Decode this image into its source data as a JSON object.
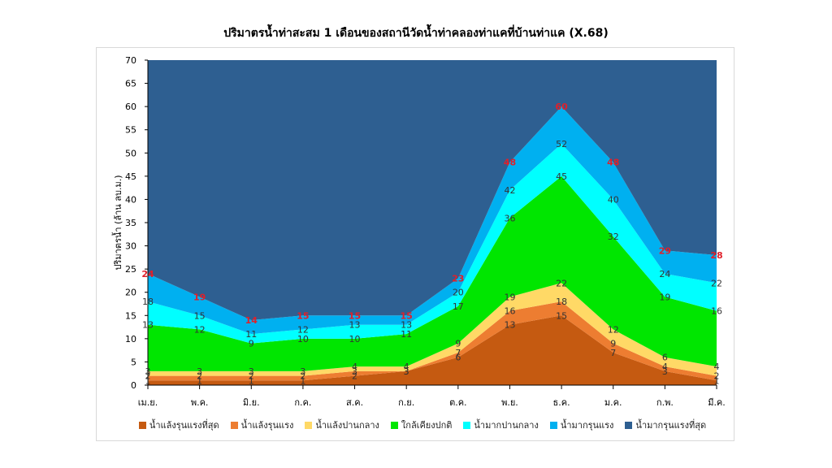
{
  "chart_data": {
    "type": "area",
    "title": "ปริมาตรน้ำท่าสะสม 1 เดือนของสถานีวัดน้ำท่าคลองท่าแคที่บ้านท่าแค (X.68)",
    "ylabel": "ปริมาตรน้ำ (ล้าน ลบ.ม.)",
    "xlabel": "",
    "ylim": [
      0,
      70
    ],
    "yticks": [
      0,
      5,
      10,
      15,
      20,
      25,
      30,
      35,
      40,
      45,
      50,
      55,
      60,
      65,
      70
    ],
    "categories": [
      "เม.ย.",
      "พ.ค.",
      "มิ.ย.",
      "ก.ค.",
      "ส.ค.",
      "ก.ย.",
      "ต.ค.",
      "พ.ย.",
      "ธ.ค.",
      "ม.ค.",
      "ก.พ.",
      "มี.ค."
    ],
    "legend_position": "bottom",
    "series": [
      {
        "name": "น้ำแล้งรุนแรงที่สุด",
        "color": "#c55a11",
        "values": [
          1,
          1,
          1,
          1,
          2,
          3,
          6,
          13,
          15,
          7,
          3,
          1
        ]
      },
      {
        "name": "น้ำแล้งรุนแรง",
        "color": "#ed7d31",
        "values": [
          2,
          2,
          2,
          2,
          3,
          3,
          7,
          16,
          18,
          9,
          4,
          2
        ]
      },
      {
        "name": "น้ำแล้งปานกลาง",
        "color": "#ffd966",
        "values": [
          3,
          3,
          3,
          3,
          4,
          4,
          9,
          19,
          22,
          12,
          6,
          4
        ]
      },
      {
        "name": "ใกล้เคียงปกติ",
        "color": "#00e600",
        "values": [
          13,
          12,
          9,
          10,
          10,
          11,
          17,
          36,
          45,
          32,
          19,
          16
        ]
      },
      {
        "name": "น้ำมากปานกลาง",
        "color": "#00ffff",
        "values": [
          18,
          15,
          11,
          12,
          13,
          13,
          20,
          42,
          52,
          40,
          24,
          22
        ]
      },
      {
        "name": "น้ำมากรุนแรง",
        "color": "#00b0f0",
        "values": [
          24,
          19,
          14,
          15,
          15,
          15,
          23,
          48,
          60,
          48,
          29,
          28
        ]
      },
      {
        "name": "น้ำมากรุนแรงที่สุด",
        "color": "#2e5f91",
        "values": [
          70,
          70,
          70,
          70,
          70,
          70,
          70,
          70,
          70,
          70,
          70,
          70
        ]
      }
    ],
    "label_colors": {
      "default": "#333333",
      "top": "#e0202a"
    }
  }
}
